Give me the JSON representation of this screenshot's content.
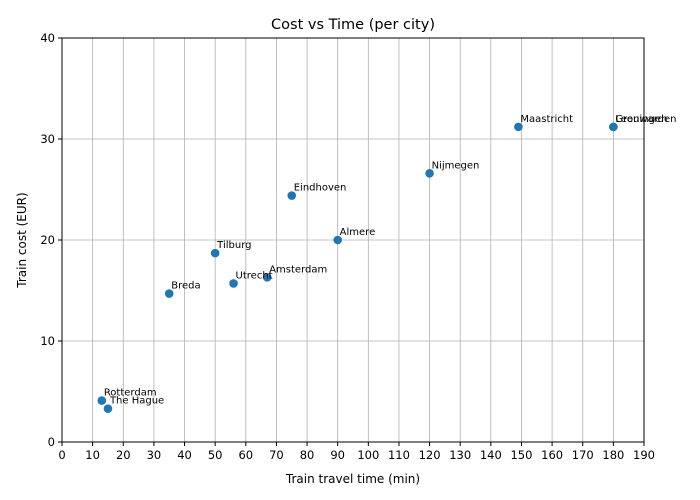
{
  "chart_data": {
    "type": "scatter",
    "title": "Cost vs Time (per city)",
    "xlabel": "Train travel time (min)",
    "ylabel": "Train cost (EUR)",
    "xlim": [
      0,
      190
    ],
    "ylim": [
      0,
      40
    ],
    "xticks": [
      0,
      10,
      20,
      30,
      40,
      50,
      60,
      70,
      80,
      90,
      100,
      110,
      120,
      130,
      140,
      150,
      160,
      170,
      180,
      190
    ],
    "yticks": [
      0,
      10,
      20,
      30,
      40
    ],
    "grid": true,
    "color": "#1f77b4",
    "points": [
      {
        "label": "Rotterdam",
        "x": 13,
        "y": 4.1
      },
      {
        "label": "The Hague",
        "x": 15,
        "y": 3.3
      },
      {
        "label": "Breda",
        "x": 35,
        "y": 14.7
      },
      {
        "label": "Tilburg",
        "x": 50,
        "y": 18.7
      },
      {
        "label": "Utrecht",
        "x": 56,
        "y": 15.7
      },
      {
        "label": "Amsterdam",
        "x": 67,
        "y": 16.3
      },
      {
        "label": "Eindhoven",
        "x": 75,
        "y": 24.4
      },
      {
        "label": "Almere",
        "x": 90,
        "y": 20.0
      },
      {
        "label": "Nijmegen",
        "x": 120,
        "y": 26.6
      },
      {
        "label": "Maastricht",
        "x": 149,
        "y": 31.2
      },
      {
        "label": "Groningen",
        "x": 180,
        "y": 31.2
      },
      {
        "label": "Leeuwarden",
        "x": 180,
        "y": 31.2
      }
    ]
  }
}
